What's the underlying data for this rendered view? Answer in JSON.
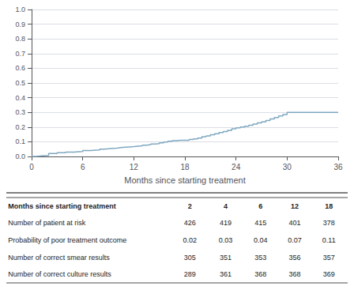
{
  "chart_data": {
    "type": "step",
    "xlabel": "Months since starting treatment",
    "x": [
      0,
      0.5,
      1,
      1.5,
      2,
      2.5,
      3,
      3.5,
      4,
      4.5,
      5,
      5.5,
      6,
      6.5,
      7,
      7.5,
      8,
      8.5,
      9,
      9.5,
      10,
      10.5,
      11,
      11.5,
      12,
      12.5,
      13,
      13.5,
      14,
      14.5,
      15,
      15.5,
      16,
      16.5,
      17,
      17.5,
      18,
      18.5,
      19,
      19.5,
      20,
      20.5,
      21,
      21.5,
      22,
      22.5,
      23,
      23.5,
      24,
      24.5,
      25,
      25.5,
      26,
      26.5,
      27,
      27.5,
      28,
      28.5,
      29,
      29.5,
      30,
      30.5,
      31,
      36
    ],
    "values": [
      0.0,
      0.003,
      0.005,
      0.007,
      0.02,
      0.02,
      0.025,
      0.025,
      0.03,
      0.03,
      0.032,
      0.033,
      0.04,
      0.04,
      0.043,
      0.045,
      0.05,
      0.052,
      0.055,
      0.057,
      0.06,
      0.063,
      0.065,
      0.067,
      0.07,
      0.072,
      0.077,
      0.08,
      0.085,
      0.088,
      0.093,
      0.098,
      0.103,
      0.107,
      0.11,
      0.11,
      0.11,
      0.115,
      0.12,
      0.125,
      0.135,
      0.14,
      0.148,
      0.155,
      0.163,
      0.17,
      0.178,
      0.188,
      0.195,
      0.2,
      0.205,
      0.213,
      0.22,
      0.228,
      0.235,
      0.245,
      0.255,
      0.265,
      0.275,
      0.285,
      0.3,
      0.3,
      0.3,
      0.3
    ],
    "color": "#7fa8c0",
    "xlim": [
      0,
      36
    ],
    "ylim": [
      0.0,
      1.0
    ],
    "xticks": [
      0,
      6,
      12,
      18,
      24,
      30,
      36
    ],
    "yticks": [
      {
        "value": 0.0,
        "label": "0.0"
      },
      0.1,
      0.2,
      0.3,
      0.4,
      0.5,
      0.6,
      0.7,
      0.8,
      0.9,
      {
        "value": 1.0,
        "label": "1.0"
      }
    ],
    "grid": true,
    "table": [
      [
        "Months since starting treatment",
        "2",
        "4",
        "6",
        "12",
        "18"
      ],
      [
        "Number of patient at risk",
        "426",
        "419",
        "415",
        "401",
        "378"
      ],
      [
        "Probability of poor treatment outcome",
        "0.02",
        "0.03",
        "0.04",
        "0.07",
        "0.11"
      ],
      [
        "Number of correct smear results",
        "305",
        "351",
        "353",
        "356",
        "357"
      ],
      [
        "Number of correct culture results",
        "289",
        "361",
        "368",
        "368",
        "369"
      ]
    ]
  }
}
